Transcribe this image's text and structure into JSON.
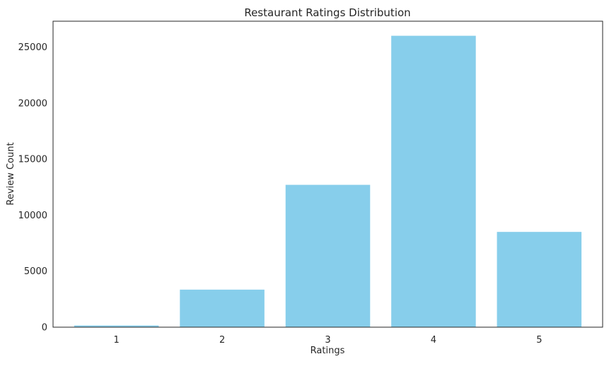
{
  "chart_data": {
    "type": "bar",
    "title": "Restaurant Ratings Distribution",
    "xlabel": "Ratings",
    "ylabel": "Review Count",
    "categories": [
      "1",
      "2",
      "3",
      "4",
      "5"
    ],
    "values": [
      150,
      3350,
      12700,
      26000,
      8500
    ],
    "ylim": [
      0,
      27300
    ],
    "yticks": [
      0,
      5000,
      10000,
      15000,
      20000,
      25000
    ],
    "grid": false,
    "bar_color": "#87ceeb",
    "axis_color": "#262626"
  }
}
